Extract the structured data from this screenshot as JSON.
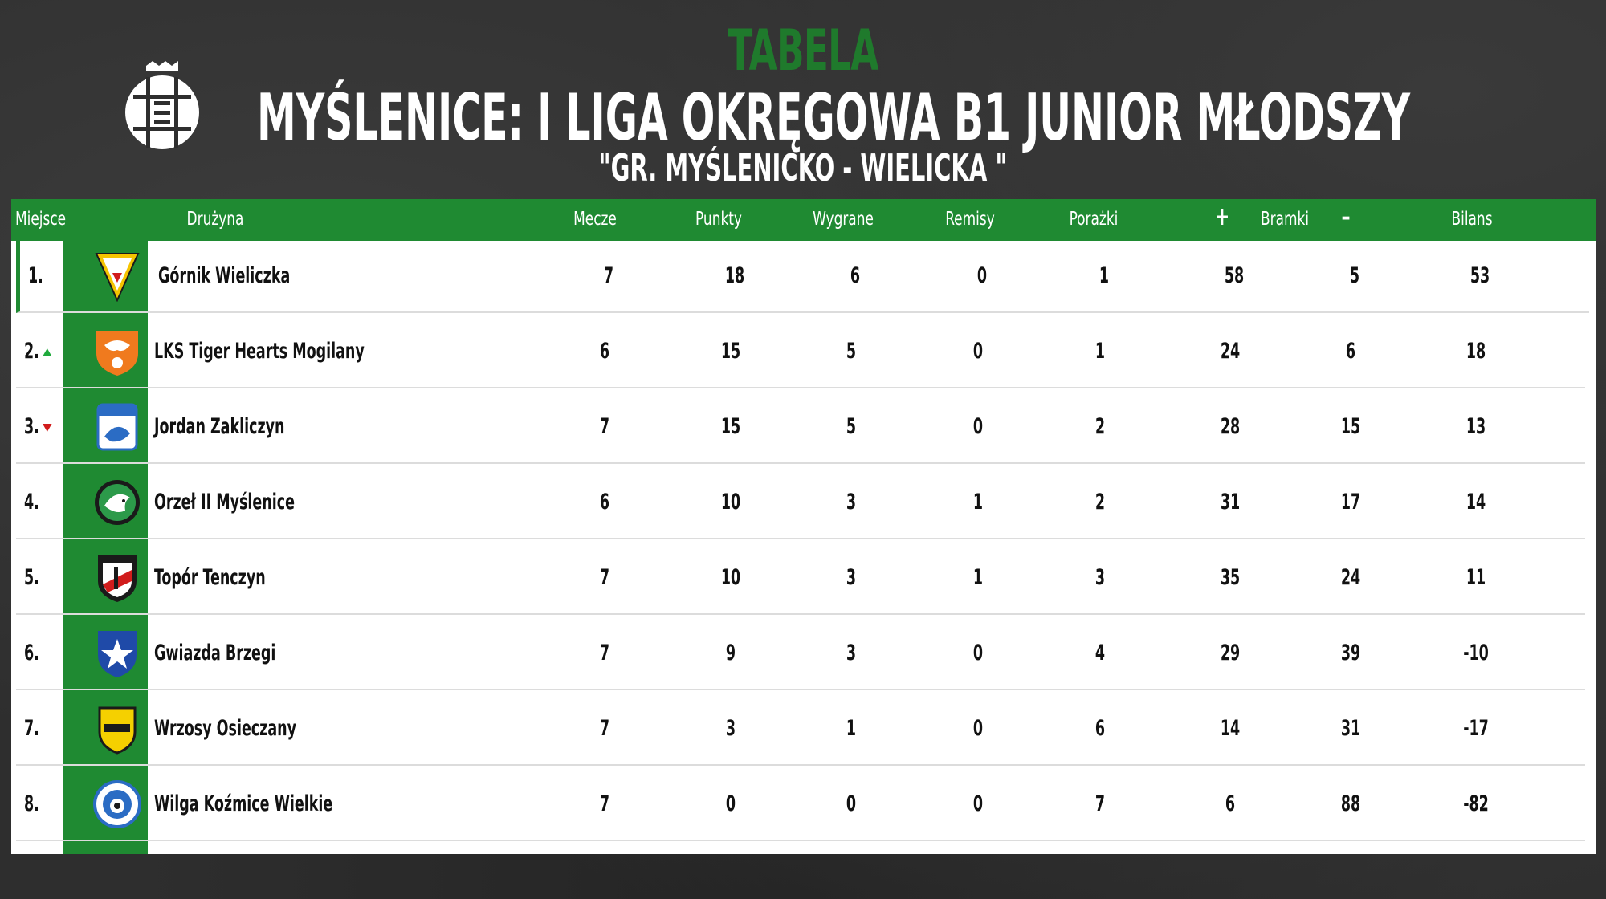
{
  "header": {
    "label": "TABELA",
    "title": "MYŚLENICE: I LIGA OKRĘGOWA B1 JUNIOR MŁODSZY",
    "subtitle": "\"GR. MYŚLENICKO - WIELICKA \""
  },
  "columns": {
    "place": "Miejsce",
    "team": "Drużyna",
    "matches": "Mecze",
    "points": "Punkty",
    "wins": "Wygrane",
    "draws": "Remisy",
    "losses": "Porażki",
    "goals_plus": "+",
    "goals": "Bramki",
    "goals_minus": "–",
    "balance": "Bilans"
  },
  "rows": [
    {
      "place": "1.",
      "team": "Górnik Wieliczka",
      "matches": "7",
      "points": "18",
      "wins": "6",
      "draws": "0",
      "losses": "1",
      "gf": "58",
      "ga": "5",
      "balance": "53",
      "trend": "none"
    },
    {
      "place": "2.",
      "team": "LKS Tiger Hearts Mogilany",
      "matches": "6",
      "points": "15",
      "wins": "5",
      "draws": "0",
      "losses": "1",
      "gf": "24",
      "ga": "6",
      "balance": "18",
      "trend": "up"
    },
    {
      "place": "3.",
      "team": "Jordan Zakliczyn",
      "matches": "7",
      "points": "15",
      "wins": "5",
      "draws": "0",
      "losses": "2",
      "gf": "28",
      "ga": "15",
      "balance": "13",
      "trend": "down"
    },
    {
      "place": "4.",
      "team": "Orzeł II Myślenice",
      "matches": "6",
      "points": "10",
      "wins": "3",
      "draws": "1",
      "losses": "2",
      "gf": "31",
      "ga": "17",
      "balance": "14",
      "trend": "none"
    },
    {
      "place": "5.",
      "team": "Topór Tenczyn",
      "matches": "7",
      "points": "10",
      "wins": "3",
      "draws": "1",
      "losses": "3",
      "gf": "35",
      "ga": "24",
      "balance": "11",
      "trend": "none"
    },
    {
      "place": "6.",
      "team": "Gwiazda Brzegi",
      "matches": "7",
      "points": "9",
      "wins": "3",
      "draws": "0",
      "losses": "4",
      "gf": "29",
      "ga": "39",
      "balance": "-10",
      "trend": "none"
    },
    {
      "place": "7.",
      "team": "Wrzosy Osieczany",
      "matches": "7",
      "points": "3",
      "wins": "1",
      "draws": "0",
      "losses": "6",
      "gf": "14",
      "ga": "31",
      "balance": "-17",
      "trend": "none"
    },
    {
      "place": "8.",
      "team": "Wilga Koźmice Wielkie",
      "matches": "7",
      "points": "0",
      "wins": "0",
      "draws": "0",
      "losses": "7",
      "gf": "6",
      "ga": "88",
      "balance": "-82",
      "trend": "none"
    }
  ],
  "colors": {
    "accent": "#1f8a32",
    "up": "#1faa3c",
    "down": "#d11c1c"
  }
}
